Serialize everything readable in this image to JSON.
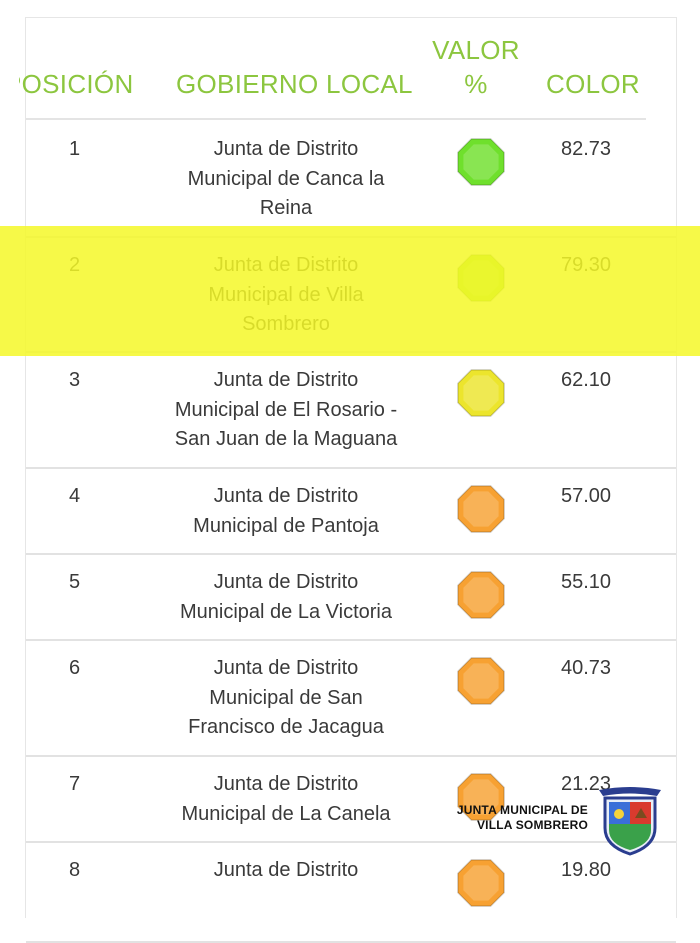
{
  "table": {
    "headers": {
      "position": "POSICIÓN",
      "government": "GOBIERNO LOCAL",
      "value_line1": "VALOR",
      "value_line2": "%",
      "color": "COLOR"
    },
    "rows": [
      {
        "position": "1",
        "lines": [
          "Junta de Distrito",
          "Municipal de Canca la",
          "Reina"
        ],
        "value": "82.73",
        "color": "#6fe02c"
      },
      {
        "position": "2",
        "lines": [
          "Junta de Distrito",
          "Municipal de Villa",
          "Sombrero"
        ],
        "value": "79.30",
        "color": "#9ee52e"
      },
      {
        "position": "3",
        "lines": [
          "Junta de Distrito",
          "Municipal de El Rosario -",
          "San Juan de la Maguana"
        ],
        "value": "62.10",
        "color": "#ece52c"
      },
      {
        "position": "4",
        "lines": [
          "Junta de Distrito",
          "Municipal de Pantoja"
        ],
        "value": "57.00",
        "color": "#f7a132"
      },
      {
        "position": "5",
        "lines": [
          "Junta de Distrito",
          "Municipal de La Victoria"
        ],
        "value": "55.10",
        "color": "#f7a132"
      },
      {
        "position": "6",
        "lines": [
          "Junta de Distrito",
          "Municipal de San",
          "Francisco de Jacagua"
        ],
        "value": "40.73",
        "color": "#f7a132"
      },
      {
        "position": "7",
        "lines": [
          "Junta de Distrito",
          "Municipal de La Canela"
        ],
        "value": "21.23",
        "color": "#f7a132"
      },
      {
        "position": "8",
        "lines": [
          "Junta de Distrito"
        ],
        "value": "19.80",
        "color": "#f7a132"
      }
    ],
    "highlighted_position": "2",
    "highlight_color": "#f5f828"
  },
  "watermark": {
    "line1": "JUNTA MUNICIPAL DE",
    "line2": "VILLA SOMBRERO",
    "seal_icon": "municipal-seal-icon"
  }
}
